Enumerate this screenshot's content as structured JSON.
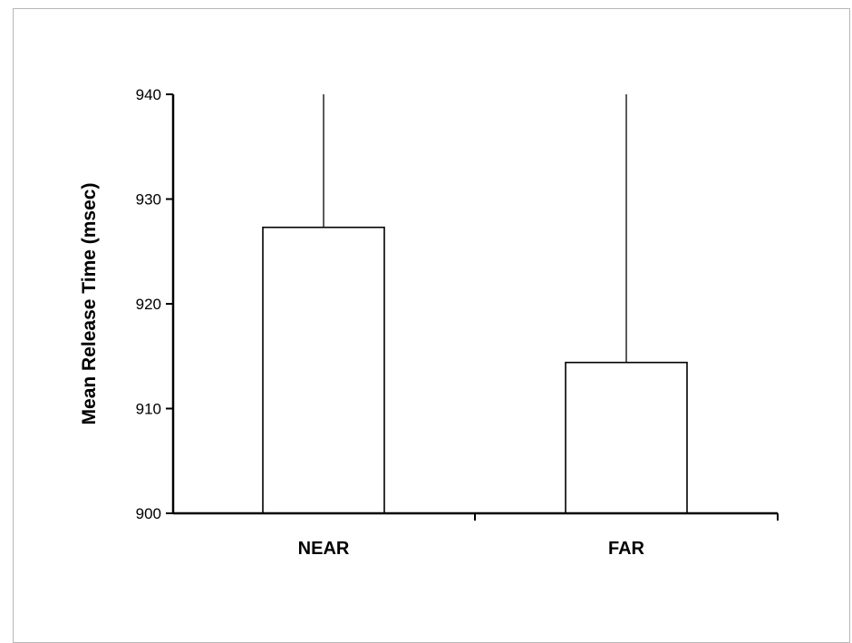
{
  "chart_data": {
    "type": "bar",
    "categories": [
      "NEAR",
      "FAR"
    ],
    "values": [
      927.3,
      914.4
    ],
    "error_upper": [
      940,
      940
    ],
    "ylabel": "Mean Release Time (msec)",
    "xlabel": "",
    "ylim": [
      900,
      940
    ],
    "yticks": [
      "900",
      "910",
      "920",
      "930",
      "940"
    ],
    "grid": false,
    "legend": "none",
    "colors": {
      "bar_fill": "#ffffff",
      "bar_stroke": "#000000",
      "axis": "#000000",
      "error_bar": "#333333"
    }
  }
}
